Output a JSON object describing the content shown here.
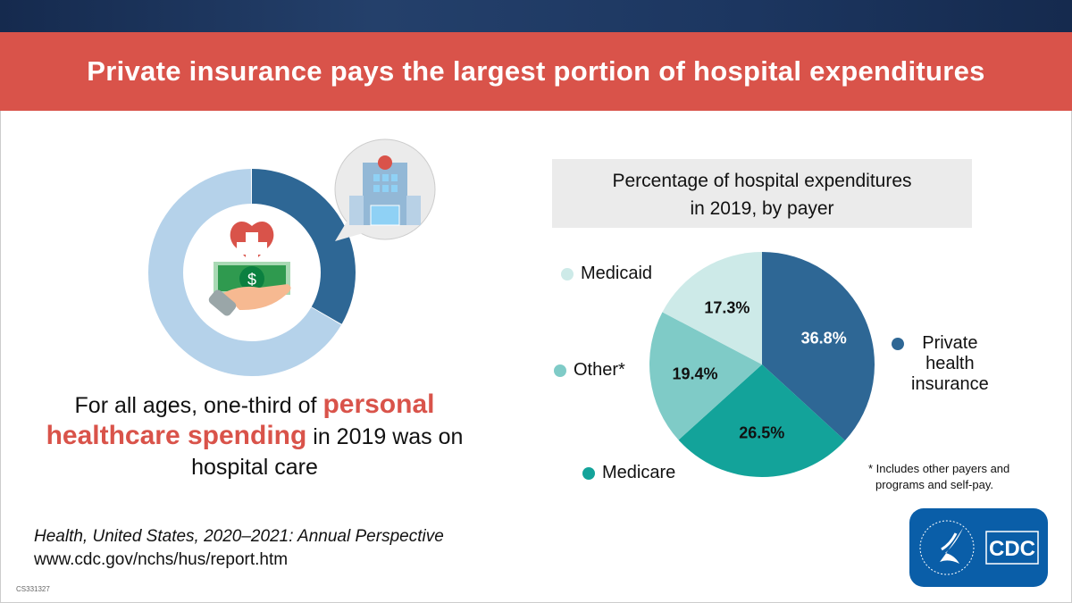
{
  "title": "Private insurance pays the largest portion of hospital expenditures",
  "caption": {
    "pre": "For all ages, one-third of ",
    "highlight": "personal healthcare spending",
    "post": " in 2019 was on hospital care"
  },
  "donut": {
    "hospital_share": 0.333,
    "colors": {
      "hospital": "#2e6795",
      "other": "#b5d2ea"
    }
  },
  "source": {
    "title": "Health, United States, 2020–2021: Annual Perspective",
    "url": "www.cdc.gov/nchs/hus/report.htm",
    "code": "CS331327"
  },
  "chart_data": {
    "type": "pie",
    "title": "Percentage of hospital expenditures in 2019, by payer",
    "title_lines": [
      "Percentage of hospital expenditures",
      "in 2019, by payer"
    ],
    "legend_placement": "around",
    "slices": [
      {
        "name": "Private health insurance",
        "value": 36.8,
        "label": "36.8%",
        "color": "#2e6795"
      },
      {
        "name": "Medicare",
        "value": 26.5,
        "label": "26.5%",
        "color": "#13a39a"
      },
      {
        "name": "Other*",
        "value": 19.4,
        "label": "19.4%",
        "color": "#7fcbc7"
      },
      {
        "name": "Medicaid",
        "value": 17.3,
        "label": "17.3%",
        "color": "#cdeae8"
      }
    ],
    "legend_lines": {
      "private": [
        "Private",
        "health",
        "insurance"
      ]
    },
    "footnote": [
      "* Includes other payers and",
      "programs and self-pay."
    ]
  },
  "logo": {
    "seal_text": "DEPARTMENT OF HEALTH & HUMAN SERVICES USA",
    "text": "CDC"
  }
}
